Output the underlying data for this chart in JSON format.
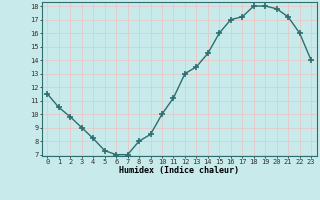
{
  "x": [
    0,
    1,
    2,
    3,
    4,
    5,
    6,
    7,
    8,
    9,
    10,
    11,
    12,
    13,
    14,
    15,
    16,
    17,
    18,
    19,
    20,
    21,
    22,
    23
  ],
  "y": [
    11.5,
    10.5,
    9.8,
    9.0,
    8.2,
    7.3,
    7.0,
    7.0,
    8.0,
    8.5,
    10.0,
    11.2,
    13.0,
    13.5,
    14.5,
    16.0,
    17.0,
    17.2,
    18.0,
    18.0,
    17.8,
    17.2,
    16.0,
    14.0
  ],
  "xlabel": "Humidex (Indice chaleur)",
  "ylim": [
    7,
    18
  ],
  "xlim": [
    -0.5,
    23.5
  ],
  "yticks": [
    7,
    8,
    9,
    10,
    11,
    12,
    13,
    14,
    15,
    16,
    17,
    18
  ],
  "xticks": [
    0,
    1,
    2,
    3,
    4,
    5,
    6,
    7,
    8,
    9,
    10,
    11,
    12,
    13,
    14,
    15,
    16,
    17,
    18,
    19,
    20,
    21,
    22,
    23
  ],
  "line_color": "#2d6e6e",
  "marker_color": "#2d6e6e",
  "bg_color": "#c8eaea",
  "grid_color": "#e8c8c8",
  "axis_bg": "#c8eaea"
}
